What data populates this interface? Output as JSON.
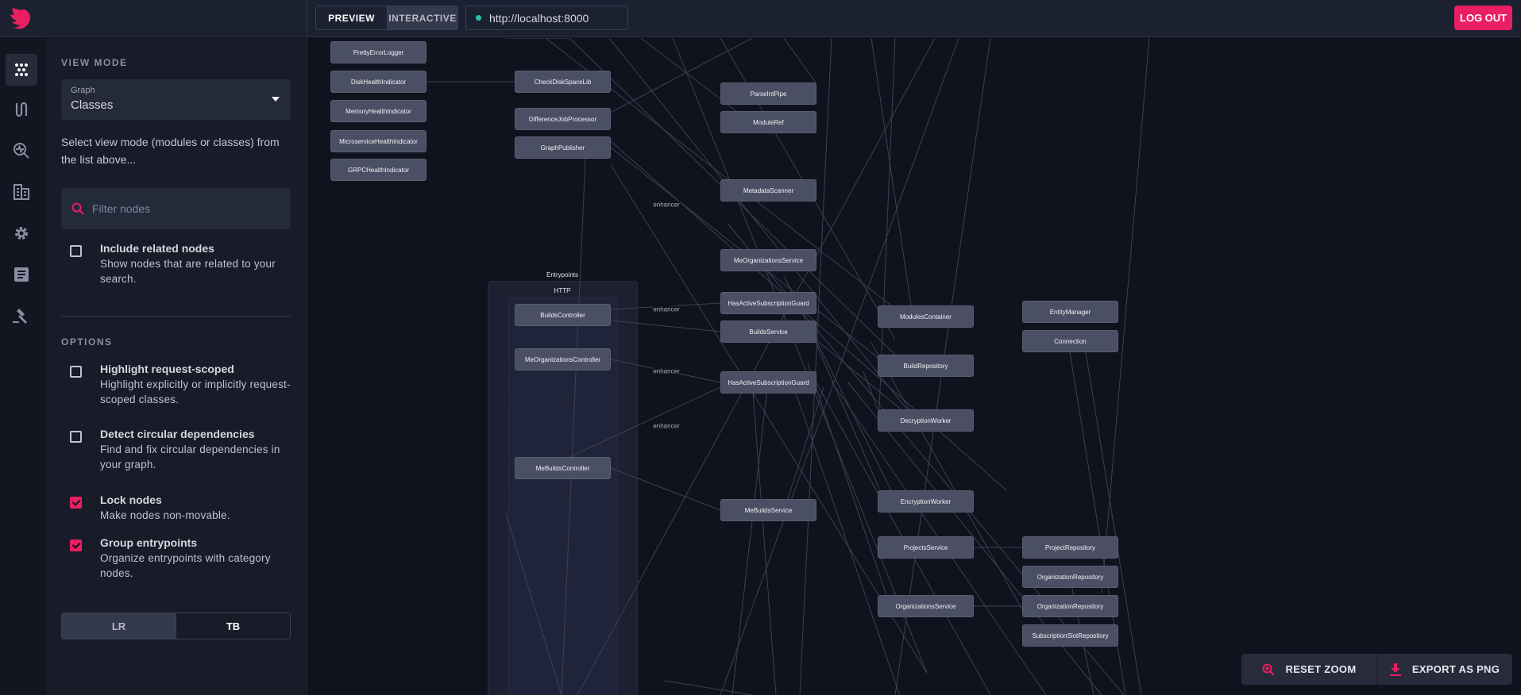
{
  "header": {
    "logo": "nestjs-logo",
    "mode_tabs": [
      {
        "label": "PREVIEW",
        "active": true
      },
      {
        "label": "INTERACTIVE",
        "active": false
      }
    ],
    "url": "http://localhost:8000",
    "url_status_color": "#2fc3a8",
    "logout_label": "LOG OUT"
  },
  "rail": {
    "items": [
      {
        "icon": "graph-icon",
        "active": true
      },
      {
        "icon": "routes-icon",
        "active": false
      },
      {
        "icon": "inspect-icon",
        "active": false
      },
      {
        "icon": "modules-icon",
        "active": false
      },
      {
        "icon": "gear-icon",
        "active": false
      },
      {
        "icon": "document-icon",
        "active": false
      },
      {
        "icon": "gavel-icon",
        "active": false
      }
    ]
  },
  "panel": {
    "view_mode_title": "VIEW MODE",
    "select_label": "Graph",
    "select_value": "Classes",
    "helper": "Select view mode (modules or classes) from the list above...",
    "filter_placeholder": "Filter nodes",
    "include_related": {
      "title": "Include related nodes",
      "desc": "Show nodes that are related to your search.",
      "checked": false
    },
    "options_title": "OPTIONS",
    "options": [
      {
        "title": "Highlight request-scoped",
        "desc": "Highlight explicitly or implicitly request-scoped classes.",
        "checked": false
      },
      {
        "title": "Detect circular dependencies",
        "desc": "Find and fix circular dependencies in your graph.",
        "checked": false
      },
      {
        "title": "Lock nodes",
        "desc": "Make nodes non-movable.",
        "checked": true
      },
      {
        "title": "Group entrypoints",
        "desc": "Organize entrypoints with category nodes.",
        "checked": true
      }
    ],
    "direction": [
      {
        "label": "LR",
        "active": true
      },
      {
        "label": "TB",
        "active": false
      }
    ]
  },
  "graph": {
    "group_outer_label": "Entrypoints",
    "group_inner_label": "HTTP",
    "nodes": [
      "PrettyErrorLogger",
      "DiskHealthIndicator",
      "MemoryHealthIndicator",
      "MicroserviceHealthIndicator",
      "GRPCHealthIndicator",
      "CheckDiskSpaceLib",
      "DifferenceJobProcessor",
      "GraphPublisher",
      "ParseIntPipe",
      "ModuleRef",
      "MetadataScanner",
      "MeOrganizationsService",
      "HasActiveSubscriptionGuard",
      "BuildsService",
      "HasActiveSubscriptionGuard",
      "MeBuildsService",
      "BuildsController",
      "MeOrganizationsController",
      "MeBuildsController",
      "ModulesContainer",
      "BuildRepository",
      "DecryptionWorker",
      "EncryptionWorker",
      "ProjectsService",
      "OrganizationsService",
      "EntityManager",
      "Connection",
      "ProjectRepository",
      "OrganizationRepository",
      "OrganizationRepository",
      "SubscriptionSlotRepository"
    ],
    "edge_labels": [
      "enhancer",
      "enhancer",
      "enhancer",
      "enhancer"
    ]
  },
  "toolbar": {
    "reset_zoom": "RESET ZOOM",
    "export_png": "EXPORT AS PNG"
  },
  "colors": {
    "accent": "#ea1e63",
    "node": "#4b4f63",
    "background": "#10121d"
  }
}
